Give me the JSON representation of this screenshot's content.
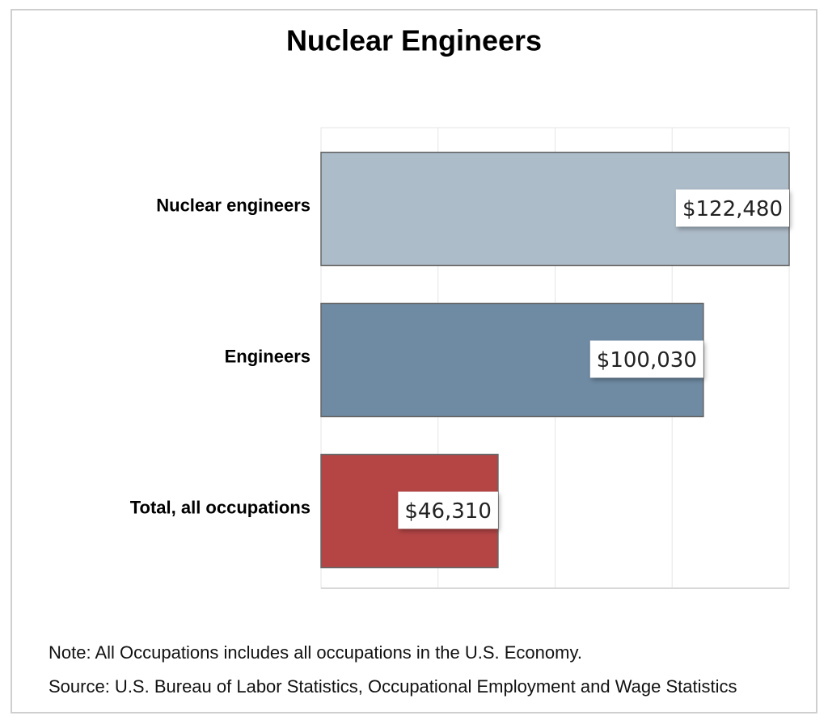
{
  "chart_data": {
    "type": "bar",
    "orientation": "horizontal",
    "title": "Nuclear Engineers",
    "categories": [
      "Nuclear engineers",
      "Engineers",
      "Total, all occupations"
    ],
    "values": [
      122480,
      100030,
      46310
    ],
    "value_labels": [
      "$122,480",
      "$100,030",
      "$46,310"
    ],
    "colors": [
      "#adbcc9",
      "#6f8ba3",
      "#b54545"
    ],
    "xlim": [
      0,
      122480
    ],
    "grid": true,
    "notes": [
      "Note: All Occupations includes all occupations in the U.S. Economy.",
      "Source: U.S. Bureau of Labor Statistics, Occupational Employment and Wage Statistics"
    ]
  }
}
